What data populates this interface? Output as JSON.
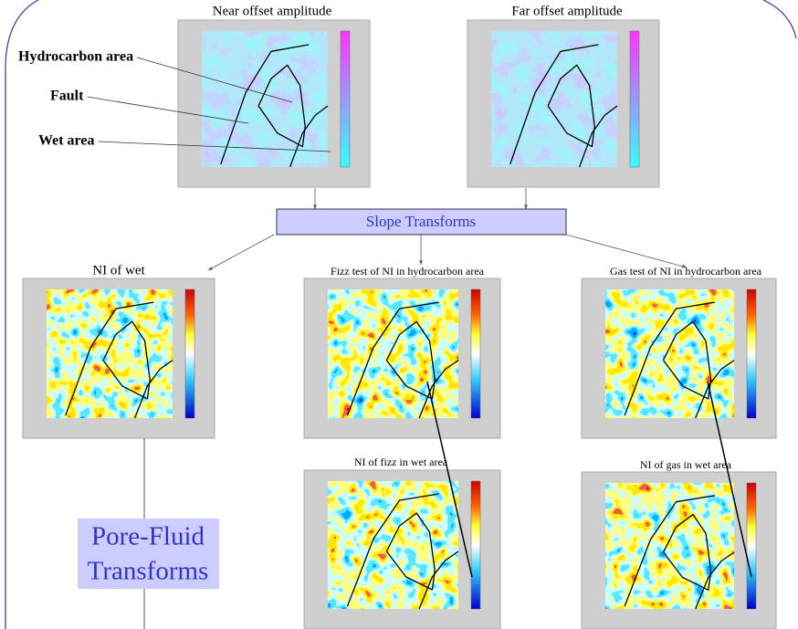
{
  "panels": [
    {
      "title": "Near offset amplitude"
    },
    {
      "title": "Far offset amplitude"
    },
    {
      "title": "NI of wet"
    },
    {
      "title": "Fizz test of NI in hydrocarbon area"
    },
    {
      "title": "Gas test of NI in hydrocarbon area"
    },
    {
      "title": "NI of fizz in wet area"
    },
    {
      "title": "NI of gas in wet area"
    }
  ],
  "annotations": [
    {
      "label": "Hydrocarbon area"
    },
    {
      "label": "Fault"
    },
    {
      "label": "Wet area"
    }
  ],
  "boxes": {
    "slope": "Slope Transforms",
    "pore_fluid": [
      "Pore-Fluid",
      "Transforms"
    ]
  }
}
